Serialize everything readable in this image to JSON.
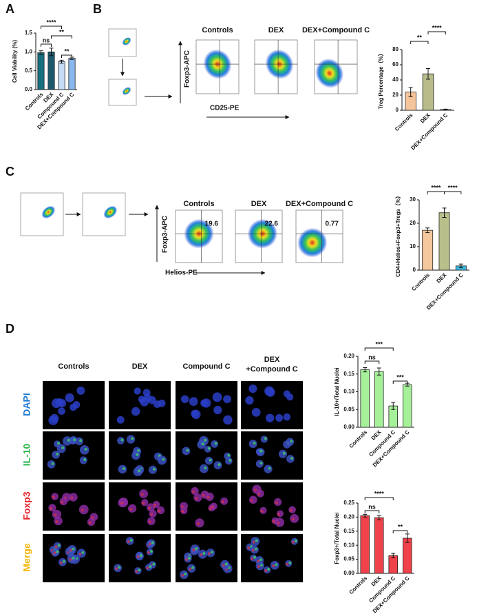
{
  "panel_labels": [
    "A",
    "B",
    "C",
    "D"
  ],
  "chart_data": [
    {
      "type": "bar",
      "ylabel": "Cell Viability (%)",
      "categories": [
        "Controls",
        "DEX",
        "Compound C",
        "DEX+Compound C"
      ],
      "values": [
        0.98,
        1.0,
        0.74,
        0.83
      ],
      "errors": [
        0.05,
        0.1,
        0.04,
        0.03
      ],
      "colors": [
        "#17707f",
        "#1d5a6e",
        "#c6dcf5",
        "#8ab8ee"
      ],
      "ylim": [
        0,
        1.5
      ],
      "yticks": [
        {
          "value": 0,
          "label": "0.0"
        },
        0.5,
        {
          "value": 1,
          "label": "1.0"
        },
        1.5
      ],
      "annotations": [
        "****",
        "ns",
        "**",
        "**"
      ]
    },
    {
      "type": "bar",
      "ylabel": "Treg Percentage（%）",
      "categories": [
        "Controls",
        "DEX",
        "DEX+Compound C"
      ],
      "values": [
        24,
        48,
        1
      ],
      "errors": [
        6,
        7,
        0.5
      ],
      "colors": [
        "#f6c49b",
        "#b8bb8a",
        "#c070c0"
      ],
      "ylim": [
        0,
        80
      ],
      "yticks": [
        0,
        20,
        40,
        60,
        80
      ],
      "annotations": [
        "**",
        "****"
      ]
    },
    {
      "type": "bar",
      "ylabel": "CD4+Helios+Foxp3+Tregs（%）",
      "categories": [
        "Controls",
        "DEX",
        "DEX+Compound C"
      ],
      "values": [
        17,
        24.5,
        1.8
      ],
      "errors": [
        1,
        2,
        0.8
      ],
      "colors": [
        "#f5c79d",
        "#b8bf8a",
        "#3cb9e0"
      ],
      "ylim": [
        0,
        30
      ],
      "yticks": [
        0,
        10,
        20,
        30
      ],
      "annotations": [
        "****",
        "****"
      ]
    },
    {
      "type": "bar",
      "ylabel": "IL-10+/Total Nuclei",
      "categories": [
        "Controls",
        "DEX",
        "Compound C",
        "DEX+Compound C"
      ],
      "values": [
        0.162,
        0.157,
        0.06,
        0.12
      ],
      "errors": [
        0.006,
        0.01,
        0.01,
        0.004
      ],
      "color": "#a6f09a",
      "ylim": [
        0,
        0.2
      ],
      "yticks": [
        {
          "value": 0,
          "label": "0.00"
        },
        0.05,
        {
          "value": 0.1,
          "label": "0.10"
        },
        0.15,
        {
          "value": 0.2,
          "label": "0.20"
        }
      ],
      "annotations": [
        "ns",
        "***",
        "***"
      ]
    },
    {
      "type": "bar",
      "ylabel": "Foxp3+/Total Nuclei",
      "categories": [
        "Controls",
        "DEX",
        "Compound C",
        "DEX+Compound C"
      ],
      "values": [
        0.205,
        0.198,
        0.063,
        0.125
      ],
      "errors": [
        0.005,
        0.008,
        0.008,
        0.015
      ],
      "color": "#f0424a",
      "ylim": [
        0,
        0.25
      ],
      "yticks": [
        {
          "value": 0,
          "label": "0.00"
        },
        0.05,
        {
          "value": 0.1,
          "label": "0.10"
        },
        0.15,
        {
          "value": 0.2,
          "label": "0.20"
        },
        0.25
      ],
      "annotations": [
        "ns",
        "****",
        "**"
      ]
    }
  ],
  "flow_b": {
    "y_axis": "Foxp3-APC",
    "x_axis": "CD25-PE",
    "titles": [
      "Controls",
      "DEX",
      "DEX+Compound C"
    ]
  },
  "flow_c": {
    "y_axis": "Foxp3-APC",
    "x_axis": "Helios-PE",
    "titles": [
      "Controls",
      "DEX",
      "DEX+Compound C"
    ],
    "quadrant_values": [
      19.6,
      22.6,
      0.77
    ]
  },
  "microscopy": {
    "columns": [
      [
        "Controls"
      ],
      [
        "DEX"
      ],
      [
        "Compound C"
      ],
      [
        "DEX",
        "+Compound C"
      ]
    ],
    "rows": [
      {
        "label": "DAPI",
        "color": "#1e78d0"
      },
      {
        "label": "IL-10",
        "color": "#2fb54a"
      },
      {
        "label": "Foxp3",
        "color": "#e8242c"
      },
      {
        "label": "Merge",
        "color": "#f4b400"
      }
    ]
  }
}
